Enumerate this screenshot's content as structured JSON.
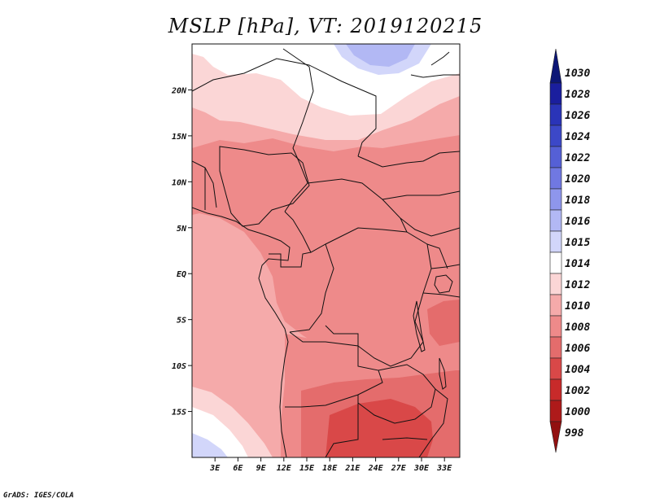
{
  "title": "MSLP [hPa], VT: 2019120215",
  "credit": "GrADS: IGES/COLA",
  "map": {
    "projection": "lat-lon",
    "lon_range": [
      0,
      35
    ],
    "lat_range": [
      -20,
      25
    ],
    "field": "mean sea level pressure",
    "lat_ticks": [
      {
        "value": 20,
        "label": "20N"
      },
      {
        "value": 15,
        "label": "15N"
      },
      {
        "value": 10,
        "label": "10N"
      },
      {
        "value": 5,
        "label": "5N"
      },
      {
        "value": 0,
        "label": "EQ"
      },
      {
        "value": -5,
        "label": "5S"
      },
      {
        "value": -10,
        "label": "10S"
      },
      {
        "value": -15,
        "label": "15S"
      }
    ],
    "lon_ticks": [
      {
        "value": 3,
        "label": "3E"
      },
      {
        "value": 6,
        "label": "6E"
      },
      {
        "value": 9,
        "label": "9E"
      },
      {
        "value": 12,
        "label": "12E"
      },
      {
        "value": 15,
        "label": "15E"
      },
      {
        "value": 18,
        "label": "18E"
      },
      {
        "value": 21,
        "label": "21E"
      },
      {
        "value": 24,
        "label": "24E"
      },
      {
        "value": 27,
        "label": "27E"
      },
      {
        "value": 30,
        "label": "30E"
      },
      {
        "value": 33,
        "label": "33E"
      }
    ]
  },
  "colorbar": {
    "labels": [
      "1030",
      "1028",
      "1026",
      "1024",
      "1022",
      "1020",
      "1018",
      "1016",
      "1015",
      "1014",
      "1012",
      "1010",
      "1008",
      "1006",
      "1004",
      "1002",
      "1000",
      "998"
    ],
    "colors": [
      "#0c1676",
      "#1a1e9e",
      "#2a34b8",
      "#3c48c8",
      "#5560d6",
      "#7078e2",
      "#8e96ec",
      "#b2b8f4",
      "#d2d6fa",
      "#ffffff",
      "#fbd6d6",
      "#f5aaaa",
      "#ee8a8a",
      "#e46c6c",
      "#d94848",
      "#c82a2a",
      "#ae1a1a",
      "#921010"
    ]
  },
  "colors": {
    "p1014": "#ffffff",
    "p1012": "#fbd6d6",
    "p1010": "#f5aaaa",
    "p1008": "#ee8a8a",
    "p1006": "#e46c6c",
    "p1004": "#d94848",
    "p1016": "#b2b8f4",
    "p1015": "#d2d6fa",
    "p1018": "#8e96ec"
  }
}
